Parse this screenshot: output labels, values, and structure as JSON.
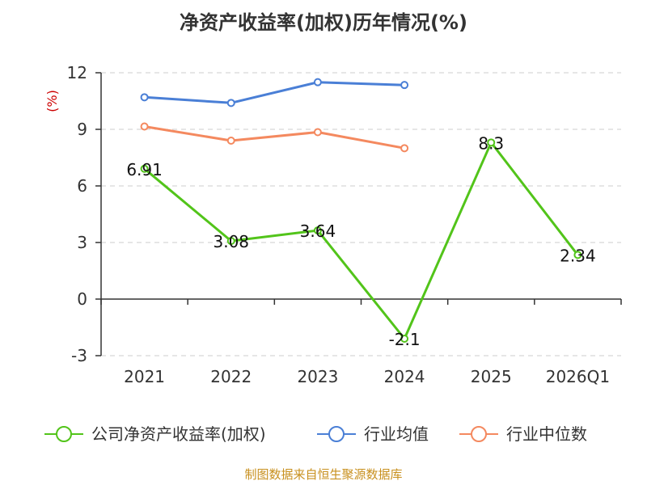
{
  "chart_data": {
    "type": "line",
    "title": "净资产收益率(加权)历年情况(%)",
    "ylabel": "(%)",
    "categories": [
      "2021",
      "2022",
      "2023",
      "2024",
      "2025",
      "2026Q1"
    ],
    "ylim": [
      -3,
      12
    ],
    "yticks": [
      "12",
      "9",
      "6",
      "3",
      "0",
      "-3"
    ],
    "grid": true,
    "legend_position": "bottom",
    "series": [
      {
        "name": "公司净资产收益率(加权)",
        "color": "#52c41a",
        "values": [
          6.91,
          3.08,
          3.64,
          -2.1,
          8.3,
          2.34
        ],
        "labels": [
          "6.91",
          "3.08",
          "3.64",
          "-2.1",
          "8.3",
          "2.34"
        ]
      },
      {
        "name": "行业均值",
        "color": "#4a7fd6",
        "values": [
          10.7,
          10.4,
          11.5,
          11.35,
          null,
          null
        ]
      },
      {
        "name": "行业中位数",
        "color": "#f4895f",
        "values": [
          9.15,
          8.4,
          8.85,
          8.0,
          null,
          null
        ]
      }
    ],
    "source": "制图数据来自恒生聚源数据库",
    "colors": {
      "axis": "#333333",
      "grid": "#cccccc",
      "unit": "#cc0000",
      "source": "#c8901e"
    }
  }
}
